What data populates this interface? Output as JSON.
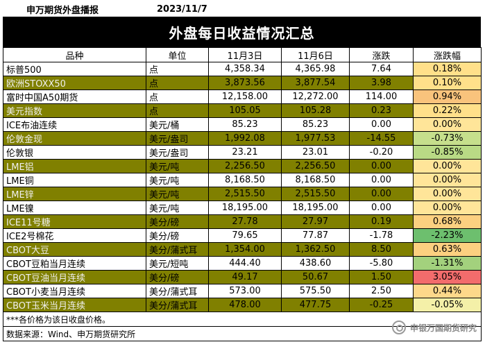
{
  "header": {
    "org": "申万期货外盘播报",
    "date": "2023/11/7"
  },
  "title": "外盘每日收益情况汇总",
  "columns": [
    "品种",
    "单位",
    "11月3日",
    "11月6日",
    "涨跌",
    "涨跌幅"
  ],
  "rows": [
    {
      "name": "标普500",
      "unit": "点",
      "d1": "4,358.34",
      "d2": "4,365.98",
      "chg": "7.64",
      "pct": "0.18%",
      "pct_color": "#ffe08a",
      "style": "white"
    },
    {
      "name": "欧洲STOXX50",
      "unit": "点",
      "d1": "3,873.56",
      "d2": "3,877.54",
      "chg": "3.98",
      "pct": "0.10%",
      "pct_color": "#ffe08a",
      "style": "olive"
    },
    {
      "name": "富时中国A50期货",
      "unit": "点",
      "d1": "12,158.00",
      "d2": "12,272.00",
      "chg": "114.00",
      "pct": "0.94%",
      "pct_color": "#f9c37c",
      "style": "white"
    },
    {
      "name": "美元指数",
      "unit": "点",
      "d1": "105.05",
      "d2": "105.28",
      "chg": "0.23",
      "pct": "0.22%",
      "pct_color": "#ffe08a",
      "style": "olive"
    },
    {
      "name": "ICE布油连续",
      "unit": "美元/桶",
      "d1": "85.23",
      "d2": "85.23",
      "chg": "0.00",
      "pct": "0.00%",
      "pct_color": "#ffe599",
      "style": "white"
    },
    {
      "name": "伦敦金现",
      "unit": "美元/盎司",
      "d1": "1,992.08",
      "d2": "1,977.53",
      "chg": "-14.55",
      "pct": "-0.73%",
      "pct_color": "#c6df8c",
      "style": "olive"
    },
    {
      "name": "伦敦银",
      "unit": "美元/盎司",
      "d1": "23.21",
      "d2": "23.01",
      "chg": "-0.20",
      "pct": "-0.85%",
      "pct_color": "#b9da85",
      "style": "white"
    },
    {
      "name": "LME铝",
      "unit": "美元/吨",
      "d1": "2,256.50",
      "d2": "2,256.50",
      "chg": "0.00",
      "pct": "0.00%",
      "pct_color": "#ffe599",
      "style": "olive"
    },
    {
      "name": "LME铜",
      "unit": "美元/吨",
      "d1": "8,168.50",
      "d2": "8,168.50",
      "chg": "0.00",
      "pct": "0.00%",
      "pct_color": "#ffe599",
      "style": "white"
    },
    {
      "name": "LME锌",
      "unit": "美元/吨",
      "d1": "2,515.50",
      "d2": "2,515.50",
      "chg": "0.00",
      "pct": "0.00%",
      "pct_color": "#ffe599",
      "style": "olive"
    },
    {
      "name": "LME镍",
      "unit": "美元/吨",
      "d1": "18,195.00",
      "d2": "18,195.00",
      "chg": "0.00",
      "pct": "0.00%",
      "pct_color": "#ffe599",
      "style": "white"
    },
    {
      "name": "ICE11号糖",
      "unit": "美分/磅",
      "d1": "27.78",
      "d2": "27.97",
      "chg": "0.19",
      "pct": "0.68%",
      "pct_color": "#fcd080",
      "style": "olive"
    },
    {
      "name": "ICE2号棉花",
      "unit": "美分/磅",
      "d1": "79.65",
      "d2": "77.87",
      "chg": "-1.78",
      "pct": "-2.23%",
      "pct_color": "#6dbf6e",
      "style": "white"
    },
    {
      "name": "CBOT大豆",
      "unit": "美分/蒲式耳",
      "d1": "1,354.00",
      "d2": "1,362.50",
      "chg": "8.50",
      "pct": "0.63%",
      "pct_color": "#fcd080",
      "style": "olive"
    },
    {
      "name": "CBOT豆粕当月连续",
      "unit": "美元/短吨",
      "d1": "444.40",
      "d2": "438.60",
      "chg": "-5.80",
      "pct": "-1.31%",
      "pct_color": "#a3d17d",
      "style": "white"
    },
    {
      "name": "CBOT豆油当月连续",
      "unit": "美分/磅",
      "d1": "49.17",
      "d2": "50.67",
      "chg": "1.50",
      "pct": "3.05%",
      "pct_color": "#f26c6c",
      "style": "olive"
    },
    {
      "name": "CBOT小麦当月连续",
      "unit": "美分/蒲式耳",
      "d1": "573.00",
      "d2": "575.50",
      "chg": "2.50",
      "pct": "0.44%",
      "pct_color": "#fdd88a",
      "style": "white"
    },
    {
      "name": "CBOT玉米当月连续",
      "unit": "美分/蒲式耳",
      "d1": "478.00",
      "d2": "477.75",
      "chg": "-0.25",
      "pct": "-0.05%",
      "pct_color": "#f4f0a8",
      "style": "olive"
    }
  ],
  "note": "***各价格为该日收盘价格。",
  "source": "数据来源：Wind、申万期货研究所",
  "watermark": "申银万国期货研究"
}
